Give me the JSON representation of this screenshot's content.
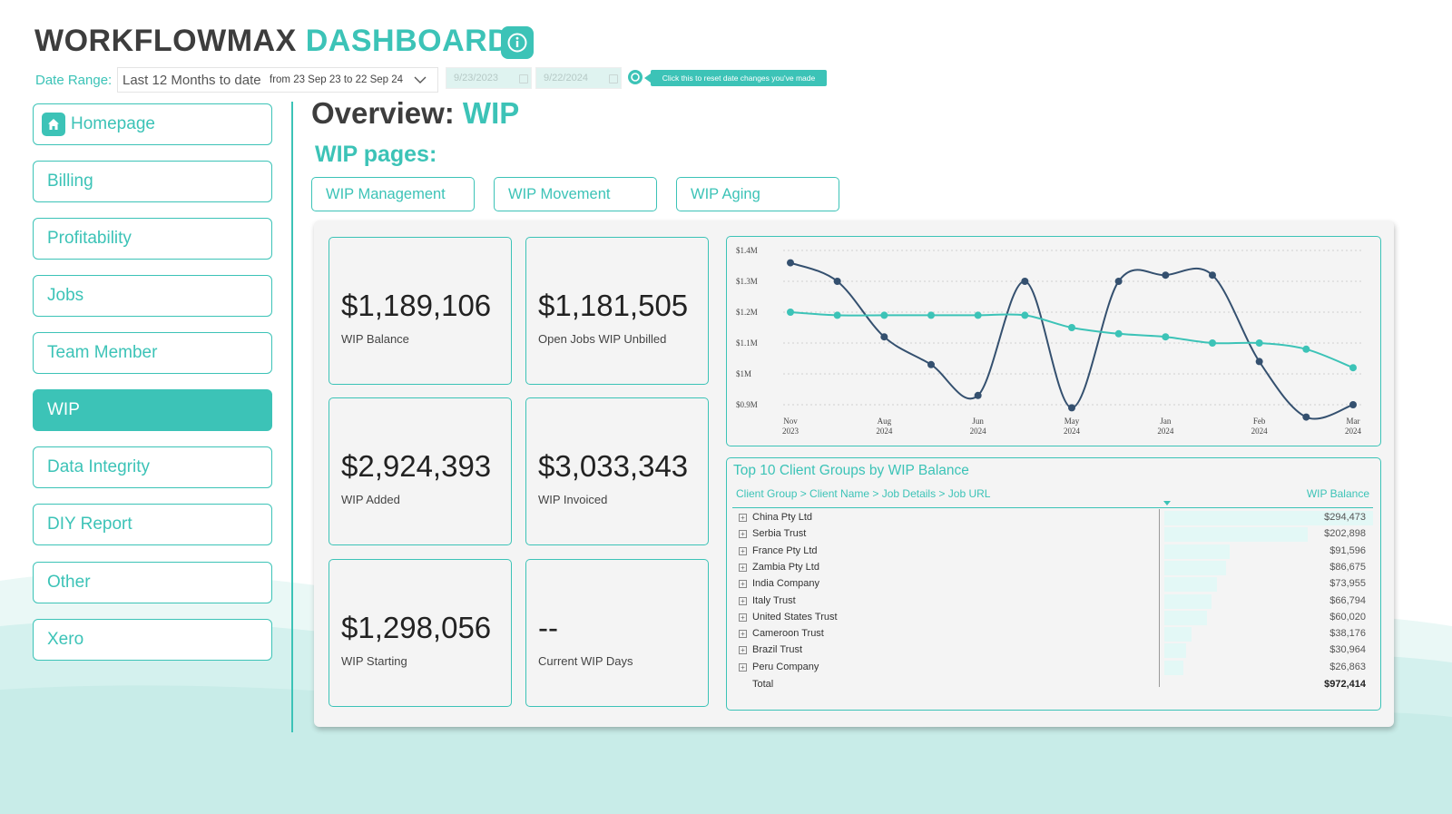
{
  "header": {
    "title_part1": "WORKFLOWMAX",
    "title_part2": "DASHBOARDS",
    "info_icon": "info-icon"
  },
  "date_filter": {
    "label": "Date Range:",
    "selected": "Last 12 Months to date",
    "range_text": "from 23 Sep 23 to 22 Sep 24",
    "start_date": "9/23/2023",
    "end_date": "9/22/2024",
    "reset_tip": "Click this to reset date changes you've made"
  },
  "nav": {
    "items": [
      {
        "label": "Homepage",
        "icon": "home-icon"
      },
      {
        "label": "Billing"
      },
      {
        "label": "Profitability"
      },
      {
        "label": "Jobs"
      },
      {
        "label": "Team Member"
      },
      {
        "label": "WIP",
        "active": true
      },
      {
        "label": "Data Integrity"
      },
      {
        "label": "DIY Report"
      },
      {
        "label": "Other"
      },
      {
        "label": "Xero"
      }
    ]
  },
  "page": {
    "overview_label": "Overview:",
    "overview_value": "WIP",
    "subpages_heading": "WIP pages:",
    "subpages": [
      "WIP Management",
      "WIP Movement",
      "WIP Aging"
    ]
  },
  "kpis": [
    {
      "value": "$1,189,106",
      "label": "WIP Balance"
    },
    {
      "value": "$1,181,505",
      "label": "Open Jobs WIP Unbilled"
    },
    {
      "value": "$2,924,393",
      "label": "WIP Added"
    },
    {
      "value": "$3,033,343",
      "label": "WIP Invoiced"
    },
    {
      "value": "$1,298,056",
      "label": "WIP Starting"
    },
    {
      "value": "--",
      "label": "Current WIP Days"
    }
  ],
  "colors": {
    "accent": "#3cc3b7",
    "navy": "#34506f",
    "text_dark": "#3d3d3d"
  },
  "chart_data": {
    "type": "line",
    "y_ticks": [
      "$1.4M",
      "$1.3M",
      "$1.2M",
      "$1.1M",
      "$1M",
      "$0.9M"
    ],
    "ylim": [
      0.9,
      1.4
    ],
    "x_tick_labels": [
      [
        "Nov",
        "2023"
      ],
      [
        "Aug",
        "2024"
      ],
      [
        "Jun",
        "2024"
      ],
      [
        "May",
        "2024"
      ],
      [
        "Jan",
        "2024"
      ],
      [
        "Feb",
        "2024"
      ],
      [
        "Mar",
        "2024"
      ]
    ],
    "grid": true,
    "series": [
      {
        "color": "#34506f",
        "values": [
          1.36,
          1.3,
          1.12,
          1.03,
          0.93,
          1.3,
          0.89,
          1.3,
          1.32,
          1.32,
          1.04,
          0.86,
          0.9
        ]
      },
      {
        "color": "#3cc3b7",
        "values": [
          1.2,
          1.19,
          1.19,
          1.19,
          1.19,
          1.19,
          1.15,
          1.13,
          1.12,
          1.1,
          1.1,
          1.08,
          1.02
        ]
      }
    ]
  },
  "table": {
    "title": "Top 10 Client Groups by WIP Balance",
    "hierarchy": "Client Group > Client Name > Job Details > Job URL",
    "measure": "WIP Balance",
    "rows": [
      {
        "name": "China Pty Ltd",
        "value": "$294,473",
        "amount": 294473
      },
      {
        "name": "Serbia Trust",
        "value": "$202,898",
        "amount": 202898
      },
      {
        "name": "France Pty Ltd",
        "value": "$91,596",
        "amount": 91596
      },
      {
        "name": "Zambia Pty Ltd",
        "value": "$86,675",
        "amount": 86675
      },
      {
        "name": "India Company",
        "value": "$73,955",
        "amount": 73955
      },
      {
        "name": "Italy Trust",
        "value": "$66,794",
        "amount": 66794
      },
      {
        "name": "United States Trust",
        "value": "$60,020",
        "amount": 60020
      },
      {
        "name": "Cameroon Trust",
        "value": "$38,176",
        "amount": 38176
      },
      {
        "name": "Brazil Trust",
        "value": "$30,964",
        "amount": 30964
      },
      {
        "name": "Peru Company",
        "value": "$26,863",
        "amount": 26863
      }
    ],
    "total_label": "Total",
    "total_value": "$972,414"
  }
}
